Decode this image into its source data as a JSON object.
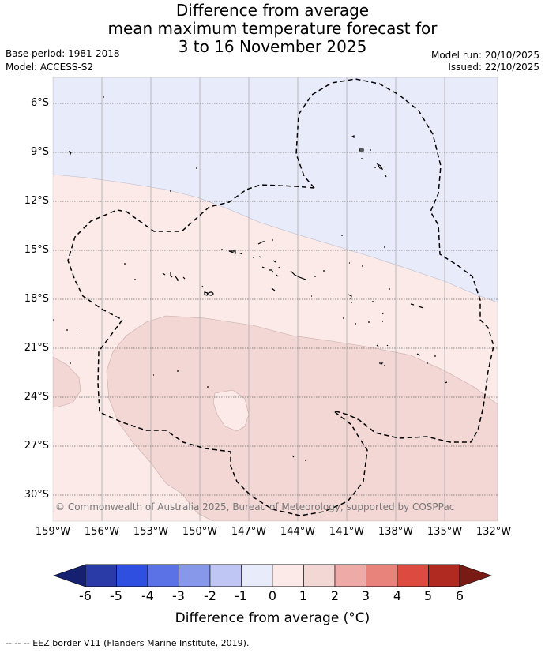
{
  "title": {
    "line1": "Difference from average",
    "line2": "mean maximum temperature forecast for",
    "line3": "3 to 16 November 2025"
  },
  "info": {
    "base_period": "Base period: 1981-2018",
    "model": "Model: ACCESS-S2",
    "model_run": "Model run: 20/10/2025",
    "issued": "Issued: 22/10/2025"
  },
  "map": {
    "latitude_labels": [
      "6°S",
      "9°S",
      "12°S",
      "15°S",
      "18°S",
      "21°S",
      "24°S",
      "27°S",
      "30°S"
    ],
    "longitude_labels": [
      "159°W",
      "156°W",
      "153°W",
      "150°W",
      "147°W",
      "144°W",
      "141°W",
      "138°W",
      "135°W",
      "132°W"
    ],
    "copyright": "© Commonwealth of Australia 2025, Bureau of Meteorology, supported by COSPPac",
    "layers": [
      {
        "name": "-1 to 0",
        "color": "#e8ebfa"
      },
      {
        "name": "0 to 1",
        "color": "#fbeae8"
      },
      {
        "name": "1 to 2",
        "color": "#f3d7d5"
      }
    ],
    "eez_border_color": "#000000"
  },
  "colorbar": {
    "ticks": [
      "-6",
      "-5",
      "-4",
      "-3",
      "-2",
      "-1",
      "0",
      "1",
      "2",
      "3",
      "4",
      "5",
      "6"
    ],
    "colors": [
      "#2a3ba8",
      "#2f4fe0",
      "#5b72e6",
      "#8797ea",
      "#c0c6f4",
      "#e8ebfa",
      "#fbeae8",
      "#f3d7d5",
      "#eeaaa6",
      "#e8837c",
      "#dc4a40",
      "#b02a22"
    ],
    "under_color": "#162070",
    "over_color": "#7a1a14",
    "label": "Difference from average (°C)"
  },
  "legend": {
    "text": "-- -- -- EEZ border V11 (Flanders Marine Institute, 2019)."
  }
}
